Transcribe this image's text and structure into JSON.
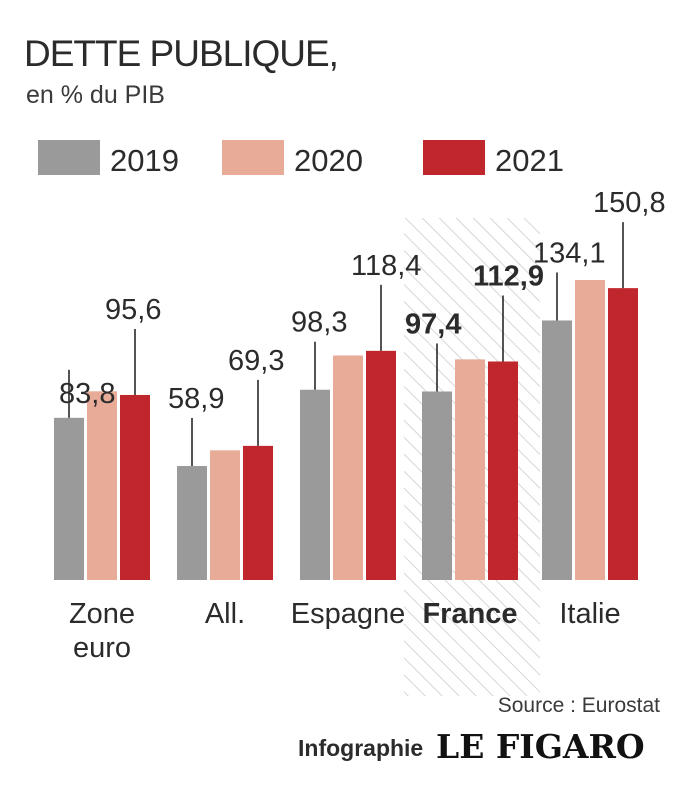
{
  "title": "DETTE PUBLIQUE,",
  "subtitle": "en % du PIB",
  "source": "Source : Eurostat",
  "credit": {
    "prefix": "Infographie",
    "brand": "LE FIGARO"
  },
  "colors": {
    "2019": "#9a9a9a",
    "2020": "#e8ab98",
    "2021": "#c0272d",
    "highlight_hatch": "#d6d6d6"
  },
  "chart_data": {
    "type": "bar",
    "categories": [
      "Zone euro",
      "All.",
      "Espagne",
      "France",
      "Italie"
    ],
    "highlight_category": "France",
    "series": [
      {
        "name": "2019",
        "values": [
          83.8,
          58.9,
          98.3,
          97.4,
          134.1
        ]
      },
      {
        "name": "2020",
        "values": [
          null,
          null,
          null,
          null,
          null
        ]
      },
      {
        "name": "2021",
        "values": [
          95.6,
          69.3,
          118.4,
          112.9,
          150.8
        ]
      }
    ],
    "estimated_2020_values": [
      97.5,
      67,
      116,
      114,
      155
    ],
    "labels": [
      [
        "83,8",
        "95,6"
      ],
      [
        "58,9",
        "69,3"
      ],
      [
        "98,3",
        "118,4"
      ],
      [
        "97,4",
        "112,9"
      ],
      [
        "134,1",
        "150,8"
      ]
    ],
    "ylim": [
      0,
      155
    ],
    "legend": {
      "position": "top",
      "entries": [
        "2019",
        "2020",
        "2021"
      ]
    },
    "grid": false
  }
}
